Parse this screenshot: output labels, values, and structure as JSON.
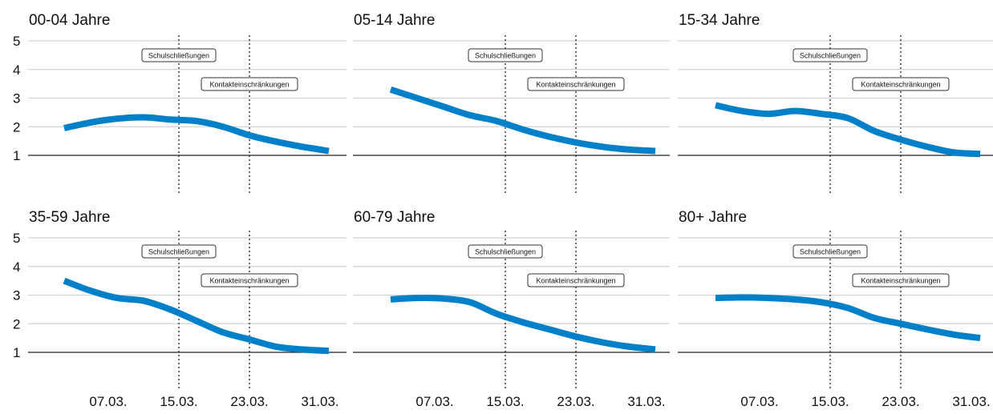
{
  "chart_data": {
    "type": "line",
    "ylim": [
      1,
      5
    ],
    "yticks": [
      "1",
      "2",
      "3",
      "4",
      "5"
    ],
    "xticks": [
      {
        "date": "2020-03-07",
        "label": "07.03."
      },
      {
        "date": "2020-03-15",
        "label": "15.03."
      },
      {
        "date": "2020-03-23",
        "label": "23.03."
      },
      {
        "date": "2020-03-31",
        "label": "31.03."
      }
    ],
    "xlim": [
      "2020-03-02",
      "2020-04-01"
    ],
    "events": [
      {
        "date": "2020-03-15",
        "label": "Schulschließungen"
      },
      {
        "date": "2020-03-23",
        "label": "Kontakteinschränkungen"
      }
    ],
    "line_color": "#0080C8",
    "panels": [
      {
        "title": "00-04 Jahre",
        "x": [
          "2020-03-02",
          "2020-03-05",
          "2020-03-08",
          "2020-03-11",
          "2020-03-14",
          "2020-03-17",
          "2020-03-20",
          "2020-03-23",
          "2020-03-26",
          "2020-03-29",
          "2020-04-01"
        ],
        "y": [
          1.95,
          2.15,
          2.28,
          2.33,
          2.25,
          2.2,
          2.0,
          1.7,
          1.48,
          1.3,
          1.15
        ]
      },
      {
        "title": "05-14 Jahre",
        "x": [
          "2020-03-02",
          "2020-03-05",
          "2020-03-08",
          "2020-03-11",
          "2020-03-14",
          "2020-03-17",
          "2020-03-20",
          "2020-03-23",
          "2020-03-26",
          "2020-03-29",
          "2020-04-01"
        ],
        "y": [
          3.3,
          3.0,
          2.7,
          2.4,
          2.2,
          1.9,
          1.65,
          1.45,
          1.3,
          1.2,
          1.15
        ]
      },
      {
        "title": "15-34 Jahre",
        "x": [
          "2020-03-02",
          "2020-03-05",
          "2020-03-08",
          "2020-03-11",
          "2020-03-14",
          "2020-03-17",
          "2020-03-20",
          "2020-03-23",
          "2020-03-26",
          "2020-03-29",
          "2020-04-01"
        ],
        "y": [
          2.75,
          2.55,
          2.45,
          2.55,
          2.45,
          2.3,
          1.85,
          1.55,
          1.3,
          1.1,
          1.05
        ]
      },
      {
        "title": "35-59 Jahre",
        "x": [
          "2020-03-02",
          "2020-03-05",
          "2020-03-08",
          "2020-03-11",
          "2020-03-14",
          "2020-03-17",
          "2020-03-20",
          "2020-03-23",
          "2020-03-26",
          "2020-03-29",
          "2020-04-01"
        ],
        "y": [
          3.5,
          3.15,
          2.9,
          2.8,
          2.5,
          2.1,
          1.7,
          1.45,
          1.2,
          1.1,
          1.05
        ]
      },
      {
        "title": "60-79 Jahre",
        "x": [
          "2020-03-02",
          "2020-03-05",
          "2020-03-08",
          "2020-03-11",
          "2020-03-14",
          "2020-03-17",
          "2020-03-20",
          "2020-03-23",
          "2020-03-26",
          "2020-03-29",
          "2020-04-01"
        ],
        "y": [
          2.85,
          2.9,
          2.88,
          2.75,
          2.35,
          2.05,
          1.8,
          1.55,
          1.35,
          1.2,
          1.1
        ]
      },
      {
        "title": "80+ Jahre",
        "x": [
          "2020-03-02",
          "2020-03-05",
          "2020-03-08",
          "2020-03-11",
          "2020-03-14",
          "2020-03-17",
          "2020-03-20",
          "2020-03-23",
          "2020-03-26",
          "2020-03-29",
          "2020-04-01"
        ],
        "y": [
          2.9,
          2.92,
          2.9,
          2.85,
          2.75,
          2.55,
          2.2,
          2.0,
          1.8,
          1.62,
          1.5
        ]
      }
    ]
  }
}
